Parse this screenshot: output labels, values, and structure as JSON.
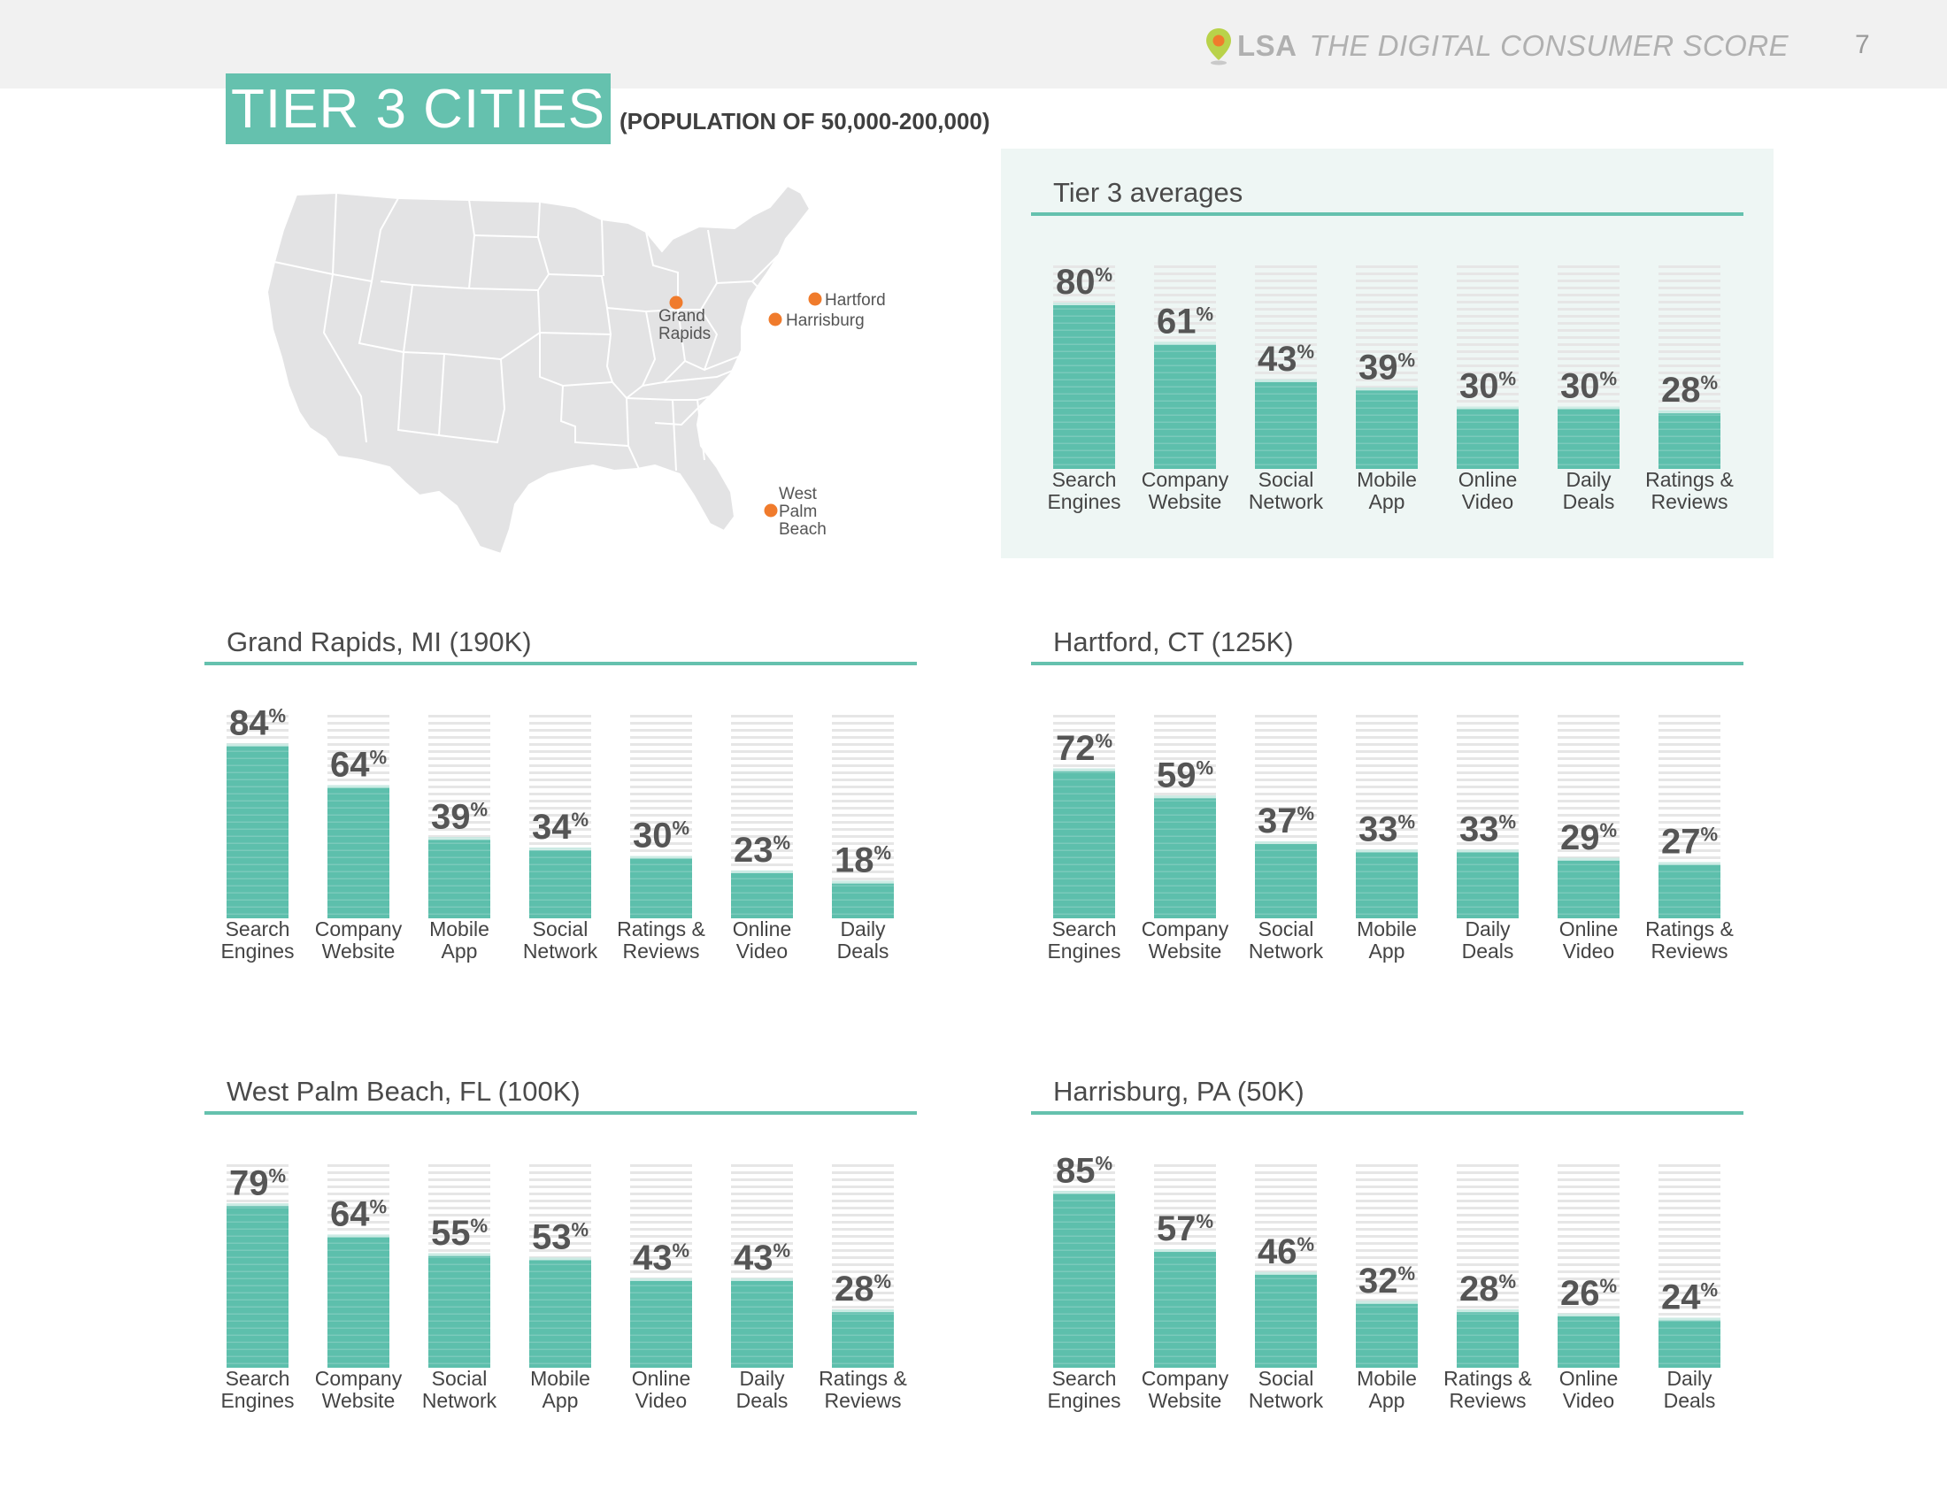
{
  "header": {
    "brand": "LSA",
    "title": "THE DIGITAL CONSUMER SCORE",
    "page_number": "7"
  },
  "section": {
    "title": "TIER 3 CITIES",
    "subtitle": "(POPULATION OF 50,000-200,000)"
  },
  "map": {
    "cities": [
      {
        "name_lines": [
          "Grand",
          "Rapids"
        ]
      },
      {
        "name_lines": [
          "Hartford"
        ]
      },
      {
        "name_lines": [
          "Harrisburg"
        ]
      },
      {
        "name_lines": [
          "West",
          "Palm",
          "Beach"
        ]
      }
    ]
  },
  "colors": {
    "bar": "#5dbfac",
    "accent_line": "#65c1ae",
    "dot": "#f07b2c",
    "ghost": "#e6e6e6"
  },
  "chart_data": [
    {
      "type": "bar",
      "title": "Tier 3 averages",
      "unit": "%",
      "ylim": [
        0,
        100
      ],
      "categories": [
        [
          "Search",
          "Engines"
        ],
        [
          "Company",
          "Website"
        ],
        [
          "Social",
          "Network"
        ],
        [
          "Mobile",
          "App"
        ],
        [
          "Online",
          "Video"
        ],
        [
          "Daily",
          "Deals"
        ],
        [
          "Ratings &",
          "Reviews"
        ]
      ],
      "values": [
        80,
        61,
        43,
        39,
        30,
        30,
        28
      ]
    },
    {
      "type": "bar",
      "title": "Grand Rapids, MI (190K)",
      "unit": "%",
      "ylim": [
        0,
        100
      ],
      "categories": [
        [
          "Search",
          "Engines"
        ],
        [
          "Company",
          "Website"
        ],
        [
          "Mobile",
          "App"
        ],
        [
          "Social",
          "Network"
        ],
        [
          "Ratings &",
          "Reviews"
        ],
        [
          "Online",
          "Video"
        ],
        [
          "Daily",
          "Deals"
        ]
      ],
      "values": [
        84,
        64,
        39,
        34,
        30,
        23,
        18
      ]
    },
    {
      "type": "bar",
      "title": "Hartford, CT (125K)",
      "unit": "%",
      "ylim": [
        0,
        100
      ],
      "categories": [
        [
          "Search",
          "Engines"
        ],
        [
          "Company",
          "Website"
        ],
        [
          "Social",
          "Network"
        ],
        [
          "Mobile",
          "App"
        ],
        [
          "Daily",
          "Deals"
        ],
        [
          "Online",
          "Video"
        ],
        [
          "Ratings &",
          "Reviews"
        ]
      ],
      "values": [
        72,
        59,
        37,
        33,
        33,
        29,
        27
      ]
    },
    {
      "type": "bar",
      "title": "West Palm Beach, FL (100K)",
      "unit": "%",
      "ylim": [
        0,
        100
      ],
      "categories": [
        [
          "Search",
          "Engines"
        ],
        [
          "Company",
          "Website"
        ],
        [
          "Social",
          "Network"
        ],
        [
          "Mobile",
          "App"
        ],
        [
          "Online",
          "Video"
        ],
        [
          "Daily",
          "Deals"
        ],
        [
          "Ratings &",
          "Reviews"
        ]
      ],
      "values": [
        79,
        64,
        55,
        53,
        43,
        43,
        28
      ]
    },
    {
      "type": "bar",
      "title": "Harrisburg, PA (50K)",
      "unit": "%",
      "ylim": [
        0,
        100
      ],
      "categories": [
        [
          "Search",
          "Engines"
        ],
        [
          "Company",
          "Website"
        ],
        [
          "Social",
          "Network"
        ],
        [
          "Mobile",
          "App"
        ],
        [
          "Ratings &",
          "Reviews"
        ],
        [
          "Online",
          "Video"
        ],
        [
          "Daily",
          "Deals"
        ]
      ],
      "values": [
        85,
        57,
        46,
        32,
        28,
        26,
        24
      ]
    }
  ]
}
